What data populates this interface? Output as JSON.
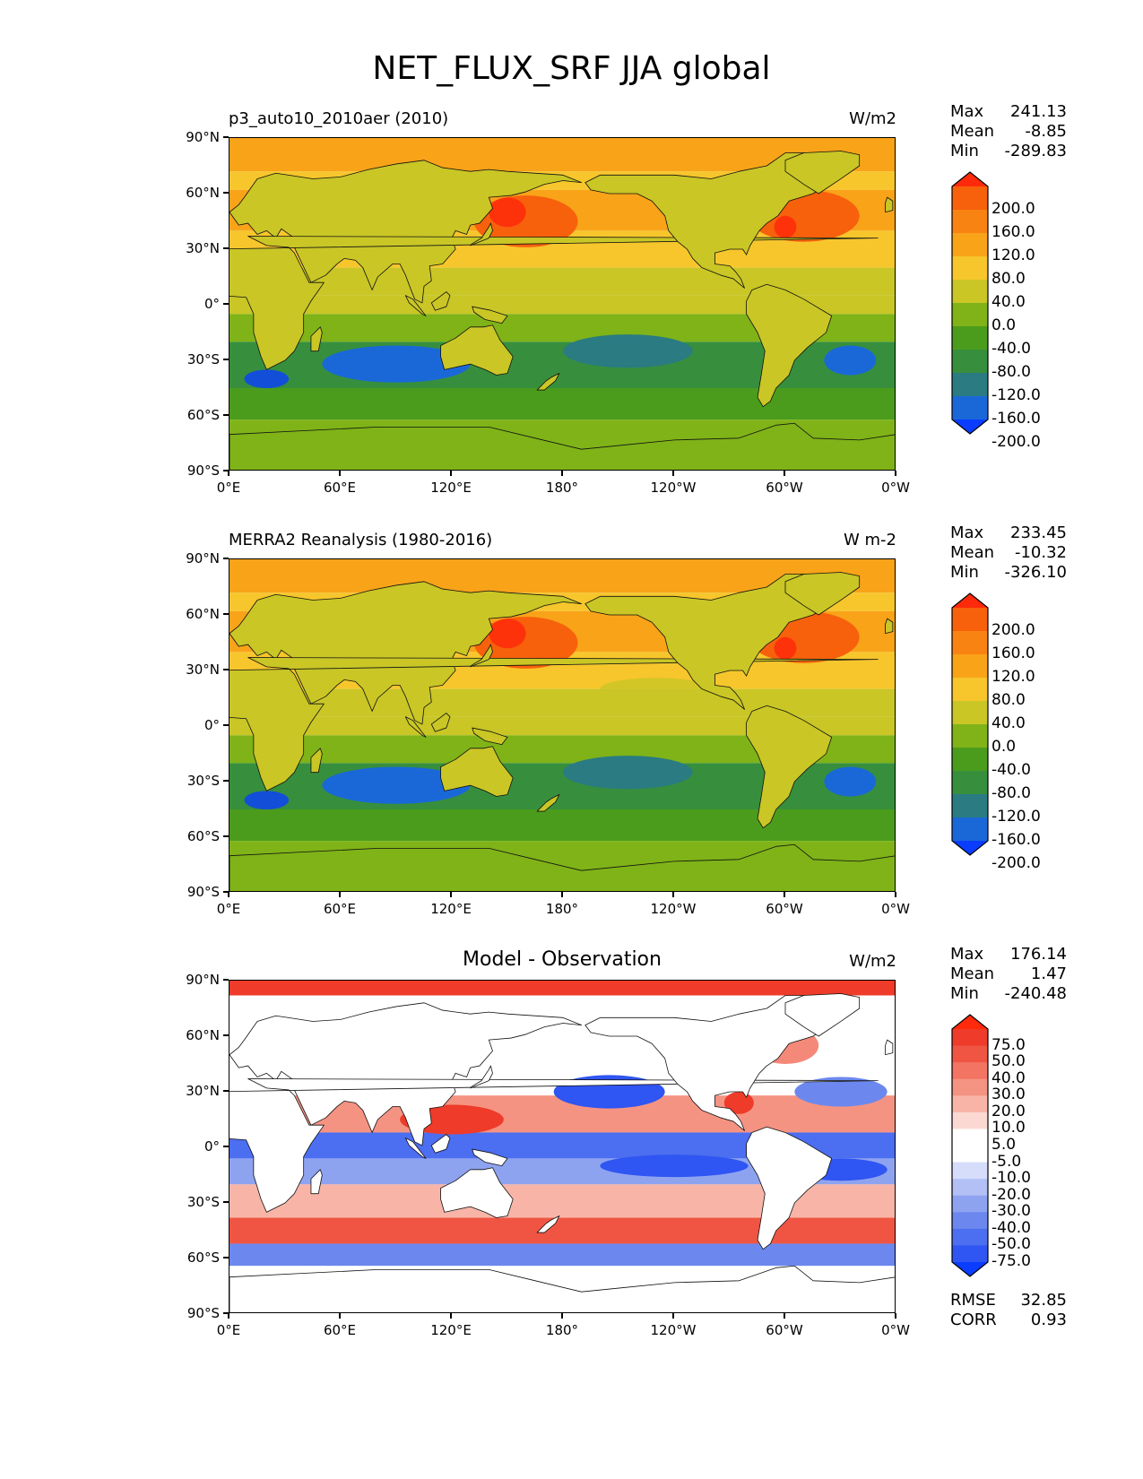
{
  "figure": {
    "title": "NET_FLUX_SRF JJA global",
    "lat_labels": [
      "90°N",
      "60°N",
      "30°N",
      "0°",
      "30°S",
      "60°S",
      "90°S"
    ],
    "lon_labels": [
      "0°E",
      "60°E",
      "120°E",
      "180°",
      "120°W",
      "60°W",
      "0°W"
    ]
  },
  "colors": {
    "abs": [
      "#0a3dff",
      "#1a68d8",
      "#2a7b82",
      "#378f3d",
      "#4b9c1c",
      "#7fb318",
      "#c9c626",
      "#f6c62c",
      "#f9a319",
      "#f98312",
      "#f7610c",
      "#ff2a0b"
    ],
    "diff": [
      "#0a3dff",
      "#2f55f2",
      "#4c6ef0",
      "#6c88ee",
      "#8ea3f0",
      "#b3c0f5",
      "#d6ddfb",
      "#ffffff",
      "#ffffff",
      "#fbd9d2",
      "#f8b5a7",
      "#f59382",
      "#f37462",
      "#f05544",
      "#ee3b2a",
      "#ff2a0b"
    ]
  },
  "panels": [
    {
      "id": "model",
      "left_label": "p3_auto10_2010aer (2010)",
      "center_label": "",
      "units": "W/m2",
      "stats": {
        "max_label": "Max",
        "max": "241.13",
        "mean_label": "Mean",
        "mean": "-8.85",
        "min_label": "Min",
        "min": "-289.83"
      },
      "colorbar": {
        "kind": "abs",
        "labels": [
          "200.0",
          "160.0",
          "120.0",
          "80.0",
          "40.0",
          "0.0",
          "-40.0",
          "-80.0",
          "-120.0",
          "-160.0",
          "-200.0"
        ]
      }
    },
    {
      "id": "obs",
      "left_label": "MERRA2 Reanalysis (1980-2016)",
      "center_label": "",
      "units": "W m-2",
      "stats": {
        "max_label": "Max",
        "max": "233.45",
        "mean_label": "Mean",
        "mean": "-10.32",
        "min_label": "Min",
        "min": "-326.10"
      },
      "colorbar": {
        "kind": "abs",
        "labels": [
          "200.0",
          "160.0",
          "120.0",
          "80.0",
          "40.0",
          "0.0",
          "-40.0",
          "-80.0",
          "-120.0",
          "-160.0",
          "-200.0"
        ]
      }
    },
    {
      "id": "diff",
      "left_label": "",
      "center_label": "Model - Observation",
      "units": "W/m2",
      "stats": {
        "max_label": "Max",
        "max": "176.14",
        "mean_label": "Mean",
        "mean": "1.47",
        "min_label": "Min",
        "min": "-240.48"
      },
      "colorbar": {
        "kind": "diff",
        "labels": [
          "75.0",
          "50.0",
          "40.0",
          "30.0",
          "20.0",
          "10.0",
          "5.0",
          "-5.0",
          "-10.0",
          "-20.0",
          "-30.0",
          "-40.0",
          "-50.0",
          "-75.0"
        ]
      },
      "extra": {
        "rmse_label": "RMSE",
        "rmse": "32.85",
        "corr_label": "CORR",
        "corr": "0.93"
      }
    }
  ]
}
